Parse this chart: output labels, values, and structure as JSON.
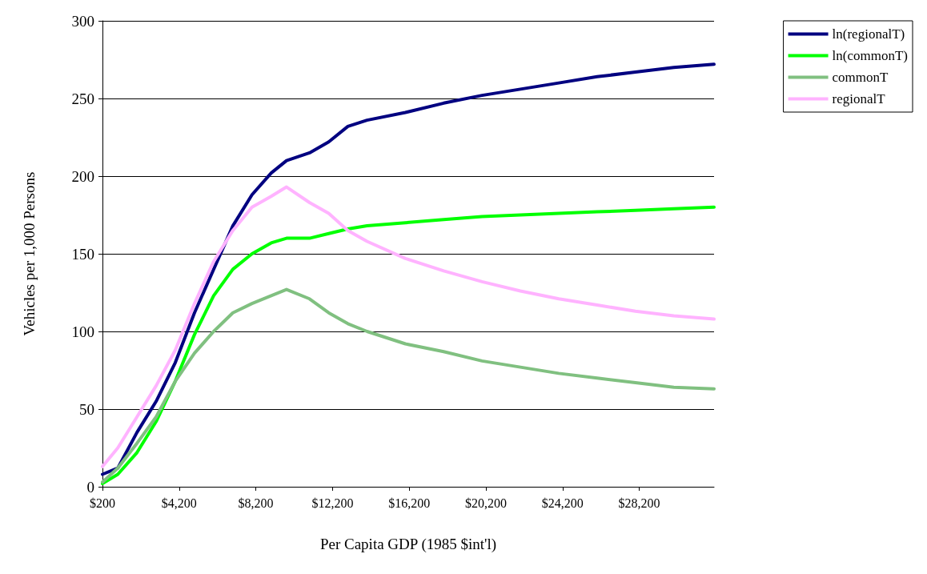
{
  "chart_data": {
    "type": "line",
    "xlabel": "Per Capita GDP (1985 $int'l)",
    "ylabel": "Vehicles per 1,000 Persons",
    "x": [
      200,
      1000,
      2000,
      3000,
      4000,
      5000,
      6000,
      7000,
      8000,
      9000,
      9800,
      11000,
      12000,
      13000,
      14000,
      16000,
      18000,
      20000,
      22000,
      24000,
      26000,
      28000,
      30000,
      32100
    ],
    "xlim": [
      200,
      32100
    ],
    "xticks": [
      {
        "value": 200,
        "label": "$200"
      },
      {
        "value": 4200,
        "label": "$4,200"
      },
      {
        "value": 8200,
        "label": "$8,200"
      },
      {
        "value": 12200,
        "label": "$12,200"
      },
      {
        "value": 16200,
        "label": "$16,200"
      },
      {
        "value": 20200,
        "label": "$20,200"
      },
      {
        "value": 24200,
        "label": "$24,200"
      },
      {
        "value": 28200,
        "label": "$28,200"
      }
    ],
    "ylim": [
      0,
      300
    ],
    "yticks": [
      0,
      50,
      100,
      150,
      200,
      250,
      300
    ],
    "grid": "y",
    "legend": "top right",
    "marker": "none",
    "line_style": "solid",
    "series": [
      {
        "name": "ln(regionalT)",
        "color": "#000080",
        "values": [
          8,
          12,
          35,
          55,
          80,
          112,
          140,
          168,
          188,
          202,
          210,
          215,
          222,
          232,
          236,
          241,
          247,
          252,
          256,
          260,
          264,
          267,
          270,
          272
        ]
      },
      {
        "name": "ln(commonT)",
        "color": "#00ff00",
        "values": [
          2,
          8,
          22,
          42,
          68,
          98,
          123,
          140,
          150,
          157,
          160,
          160,
          163,
          166,
          168,
          170,
          172,
          174,
          175,
          176,
          177,
          178,
          179,
          180
        ]
      },
      {
        "name": "commonT",
        "color": "#80c080",
        "values": [
          3,
          12,
          28,
          45,
          68,
          86,
          100,
          112,
          118,
          123,
          127,
          121,
          112,
          105,
          100,
          92,
          87,
          81,
          77,
          73,
          70,
          67,
          64,
          63
        ]
      },
      {
        "name": "regionalT",
        "color": "#ffb3ff",
        "values": [
          13,
          25,
          45,
          65,
          88,
          118,
          145,
          165,
          180,
          187,
          193,
          183,
          176,
          165,
          158,
          147,
          139,
          132,
          126,
          121,
          117,
          113,
          110,
          108
        ]
      }
    ]
  }
}
